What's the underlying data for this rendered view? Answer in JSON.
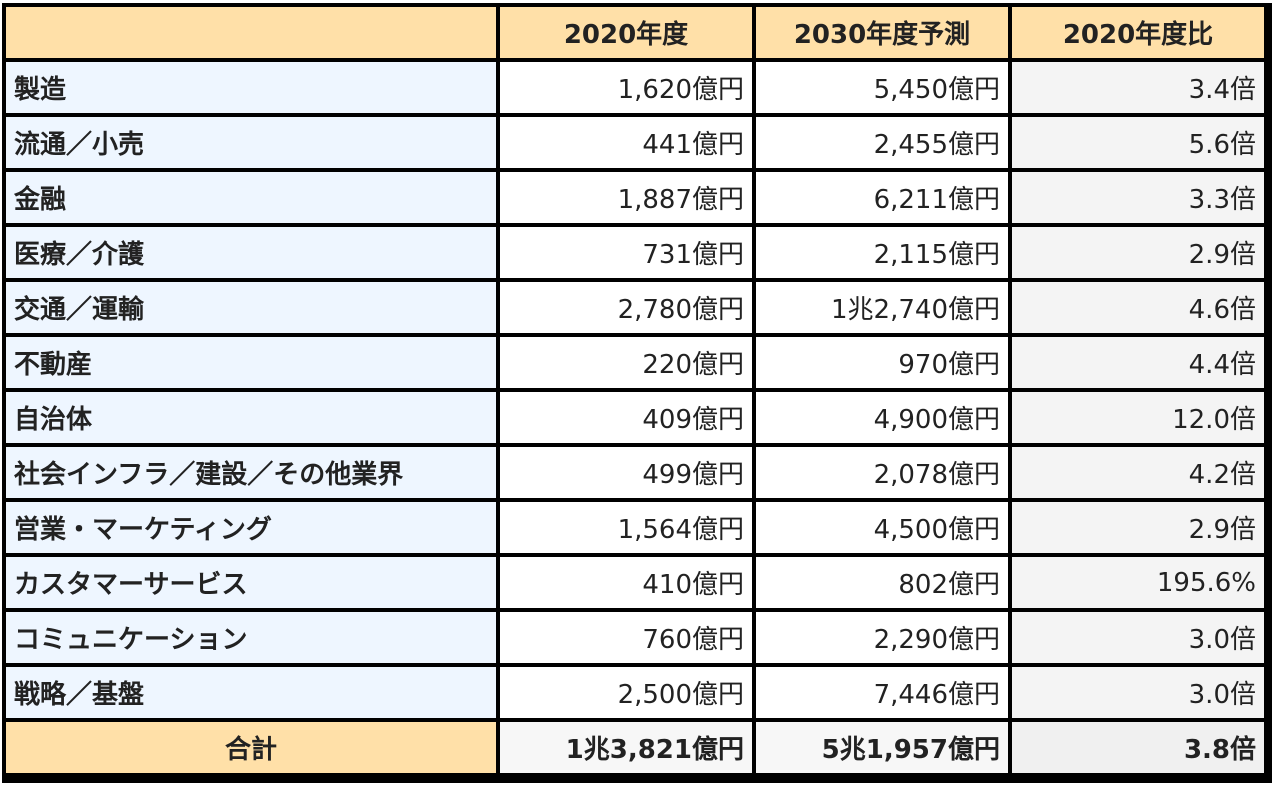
{
  "chart_data": {
    "type": "table",
    "columns": [
      "",
      "2020年度",
      "2030年度予測",
      "2020年度比"
    ],
    "rows": [
      {
        "category": "製造",
        "y2020": "1,620億円",
        "y2030": "5,450億円",
        "ratio": "3.4倍"
      },
      {
        "category": "流通／小売",
        "y2020": "441億円",
        "y2030": "2,455億円",
        "ratio": "5.6倍"
      },
      {
        "category": "金融",
        "y2020": "1,887億円",
        "y2030": "6,211億円",
        "ratio": "3.3倍"
      },
      {
        "category": "医療／介護",
        "y2020": "731億円",
        "y2030": "2,115億円",
        "ratio": "2.9倍"
      },
      {
        "category": "交通／運輸",
        "y2020": "2,780億円",
        "y2030": "1兆2,740億円",
        "ratio": "4.6倍"
      },
      {
        "category": "不動産",
        "y2020": "220億円",
        "y2030": "970億円",
        "ratio": "4.4倍"
      },
      {
        "category": "自治体",
        "y2020": "409億円",
        "y2030": "4,900億円",
        "ratio": "12.0倍"
      },
      {
        "category": "社会インフラ／建設／その他業界",
        "y2020": "499億円",
        "y2030": "2,078億円",
        "ratio": "4.2倍"
      },
      {
        "category": "営業・マーケティング",
        "y2020": "1,564億円",
        "y2030": "4,500億円",
        "ratio": "2.9倍"
      },
      {
        "category": "カスタマーサービス",
        "y2020": "410億円",
        "y2030": "802億円",
        "ratio": "195.6%"
      },
      {
        "category": "コミュニケーション",
        "y2020": "760億円",
        "y2030": "2,290億円",
        "ratio": "3.0倍"
      },
      {
        "category": "戦略／基盤",
        "y2020": "2,500億円",
        "y2030": "7,446億円",
        "ratio": "3.0倍"
      }
    ],
    "total": {
      "category": "合計",
      "y2020": "1兆3,821億円",
      "y2030": "5兆1,957億円",
      "ratio": "3.8倍"
    }
  },
  "colors": {
    "header_bg": "#ffe0a8",
    "category_bg": "#eef6ff",
    "border": "#000000"
  }
}
